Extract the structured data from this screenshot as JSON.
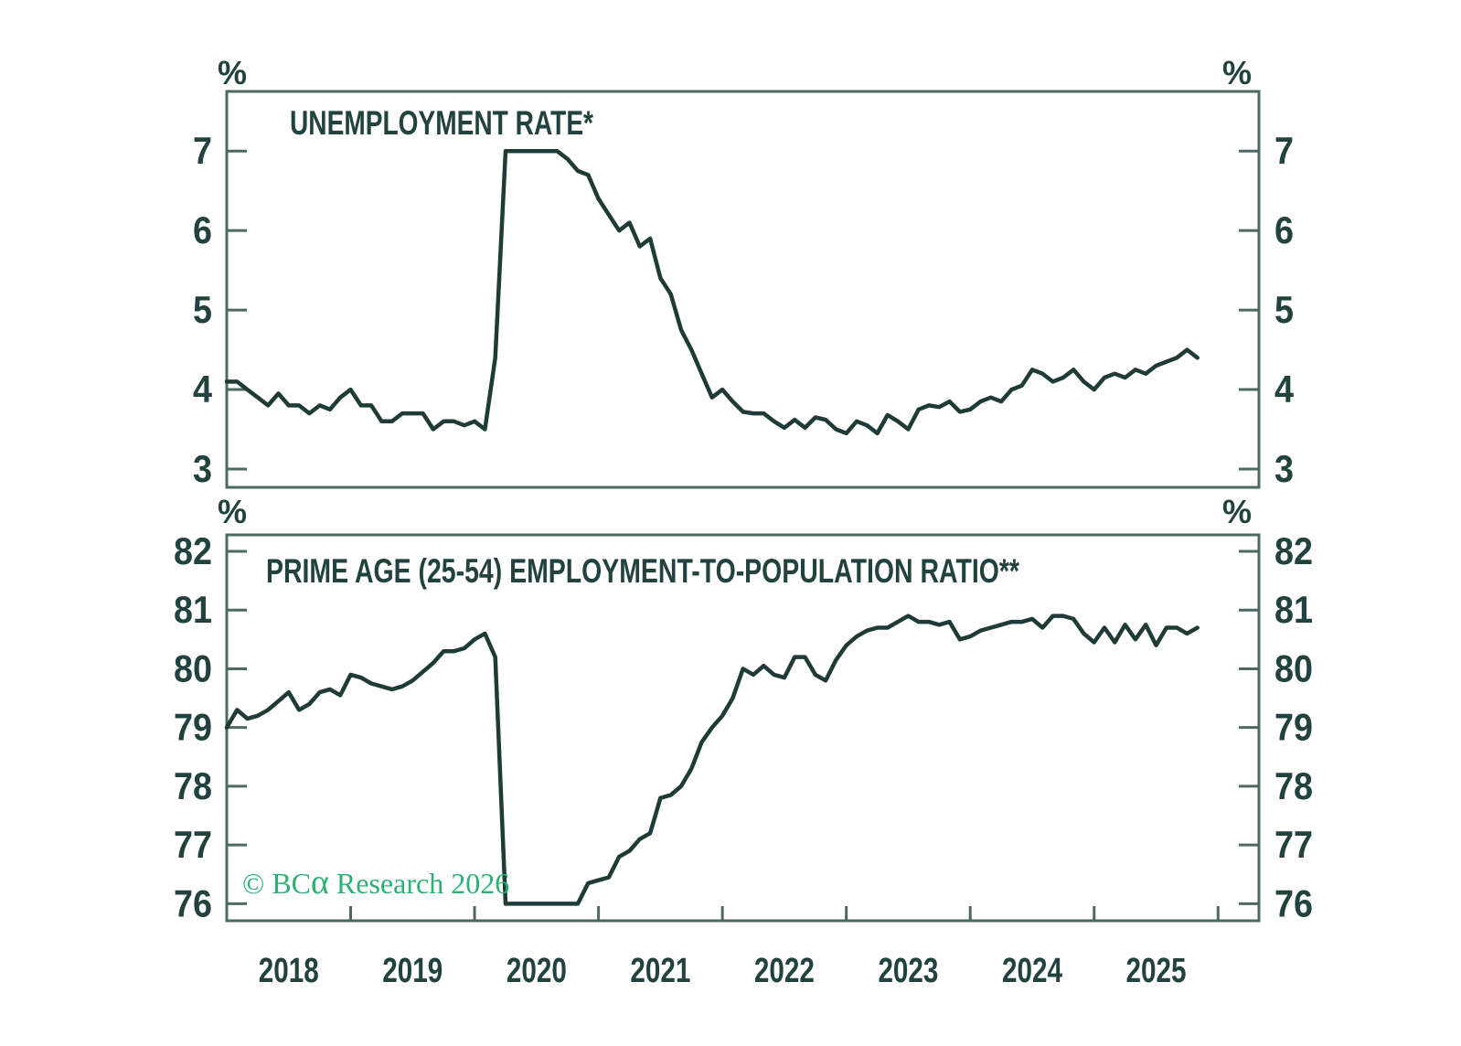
{
  "style": {
    "background": "#ffffff",
    "line_color": "#1f3b37",
    "frame_color": "#4d6762",
    "text_color": "#21423e"
  },
  "branding": {
    "wm_prefix": "© BC",
    "wm_alpha": "α",
    "wm_suffix": " Research 2026",
    "watermark_color": "#2bb273"
  },
  "chart_data": [
    {
      "type": "line",
      "title": "UNEMPLOYMENT RATE*",
      "y_axis_unit": "%",
      "frequency": "monthly",
      "x_start": "2018-01",
      "x_end": "2025-11",
      "xlim": [
        2018.0,
        2026.33
      ],
      "ylim": [
        2.77,
        7.75
      ],
      "y_ticks": [
        3,
        4,
        5,
        6,
        7
      ],
      "grid": false,
      "legend": "none",
      "values_clipped_at_max": 7.0,
      "values": [
        4.1,
        4.1,
        4.0,
        3.9,
        3.8,
        3.95,
        3.8,
        3.8,
        3.7,
        3.8,
        3.75,
        3.9,
        4.0,
        3.8,
        3.8,
        3.6,
        3.6,
        3.7,
        3.7,
        3.7,
        3.5,
        3.6,
        3.6,
        3.55,
        3.6,
        3.5,
        4.4,
        7.0,
        7.0,
        7.0,
        7.0,
        7.0,
        7.0,
        6.9,
        6.75,
        6.7,
        6.4,
        6.2,
        6.0,
        6.1,
        5.8,
        5.9,
        5.4,
        5.2,
        4.75,
        4.5,
        4.2,
        3.9,
        4.0,
        3.85,
        3.72,
        3.7,
        3.7,
        3.6,
        3.52,
        3.62,
        3.52,
        3.65,
        3.62,
        3.5,
        3.45,
        3.6,
        3.55,
        3.45,
        3.68,
        3.6,
        3.5,
        3.75,
        3.8,
        3.78,
        3.85,
        3.72,
        3.75,
        3.85,
        3.9,
        3.85,
        4.0,
        4.05,
        4.25,
        4.2,
        4.1,
        4.15,
        4.25,
        4.1,
        4.0,
        4.15,
        4.2,
        4.15,
        4.25,
        4.2,
        4.3,
        4.35,
        4.4,
        4.5,
        4.4
      ]
    },
    {
      "type": "line",
      "title": "PRIME AGE (25-54) EMPLOYMENT-TO-POPULATION RATIO**",
      "y_axis_unit": "%",
      "frequency": "monthly",
      "x_start": "2018-01",
      "x_end": "2025-11",
      "xlim": [
        2018.0,
        2026.33
      ],
      "ylim": [
        75.71,
        82.28
      ],
      "y_ticks": [
        76,
        77,
        78,
        79,
        80,
        81,
        82
      ],
      "x_tick_years": [
        2019,
        2020,
        2021,
        2022,
        2023,
        2024,
        2025,
        2026
      ],
      "x_labels": [
        "2018",
        "2019",
        "2020",
        "2021",
        "2022",
        "2023",
        "2024",
        "2025"
      ],
      "grid": false,
      "legend": "none",
      "values_clipped_at_min": 76.0,
      "values": [
        79.0,
        79.3,
        79.15,
        79.2,
        79.3,
        79.45,
        79.6,
        79.3,
        79.4,
        79.6,
        79.65,
        79.55,
        79.9,
        79.85,
        79.75,
        79.7,
        79.65,
        79.7,
        79.8,
        79.95,
        80.1,
        80.3,
        80.3,
        80.35,
        80.5,
        80.6,
        80.2,
        76.0,
        76.0,
        76.0,
        76.0,
        76.0,
        76.0,
        76.0,
        76.0,
        76.35,
        76.4,
        76.45,
        76.8,
        76.9,
        77.1,
        77.2,
        77.8,
        77.85,
        78.0,
        78.3,
        78.75,
        79.0,
        79.2,
        79.5,
        80.0,
        79.9,
        80.05,
        79.9,
        79.85,
        80.2,
        80.2,
        79.9,
        79.8,
        80.15,
        80.4,
        80.55,
        80.65,
        80.7,
        80.7,
        80.8,
        80.9,
        80.8,
        80.8,
        80.75,
        80.8,
        80.5,
        80.55,
        80.65,
        80.7,
        80.75,
        80.8,
        80.8,
        80.85,
        80.7,
        80.9,
        80.9,
        80.85,
        80.6,
        80.45,
        80.7,
        80.45,
        80.75,
        80.5,
        80.75,
        80.4,
        80.7,
        80.7,
        80.6,
        80.7
      ]
    }
  ]
}
